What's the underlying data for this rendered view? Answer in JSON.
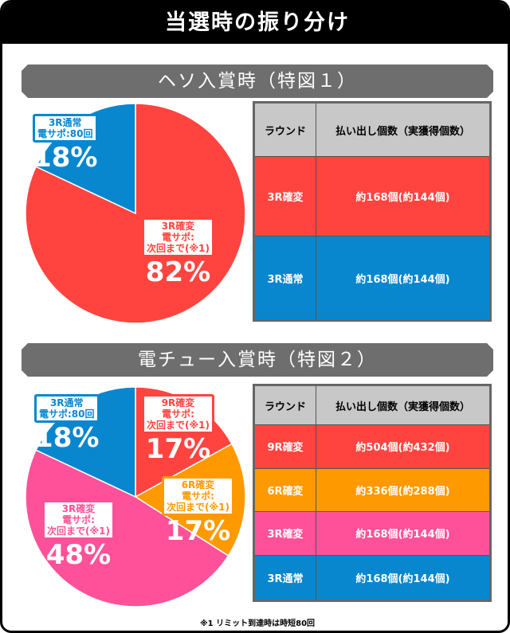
{
  "title": "当選時の振り分け",
  "colors": {
    "red": "#ff4440",
    "blue": "#0887cf",
    "orange": "#ff9900",
    "pink": "#ff5199"
  },
  "sections": [
    {
      "heading": "ヘソ入賞時（特図１）",
      "table": {
        "headers": [
          "ラウンド",
          "払い出し個数（実獲得個数）"
        ],
        "rows": [
          {
            "round": "3R確変",
            "payout": "約168個(約144個)",
            "color": "#ff4440"
          },
          {
            "round": "3R通常",
            "payout": "約168個(約144個)",
            "color": "#0887cf"
          }
        ]
      }
    },
    {
      "heading": "電チュー入賞時（特図２）",
      "table": {
        "headers": [
          "ラウンド",
          "払い出し個数（実獲得個数）"
        ],
        "rows": [
          {
            "round": "9R確変",
            "payout": "約504個(約432個)",
            "color": "#ff4440"
          },
          {
            "round": "6R確変",
            "payout": "約336個(約288個)",
            "color": "#ff9900"
          },
          {
            "round": "3R確変",
            "payout": "約168個(約144個)",
            "color": "#ff5199"
          },
          {
            "round": "3R通常",
            "payout": "約168個(約144個)",
            "color": "#0887cf"
          }
        ]
      }
    }
  ],
  "chart_data": [
    {
      "type": "pie",
      "title": "ヘソ入賞時（特図１）",
      "slices": [
        {
          "label": [
            "3R確変",
            "電サポ:",
            "次回まで(※1)"
          ],
          "value": 82,
          "pct": "82%",
          "color": "#ff4440"
        },
        {
          "label": [
            "3R通常",
            "電サポ:80回"
          ],
          "value": 18,
          "pct": "18%",
          "color": "#0887cf"
        }
      ]
    },
    {
      "type": "pie",
      "title": "電チュー入賞時（特図２）",
      "slices": [
        {
          "label": [
            "9R確変",
            "電サポ:",
            "次回まで(※1)"
          ],
          "value": 17,
          "pct": "17%",
          "color": "#ff4440"
        },
        {
          "label": [
            "6R確変",
            "電サポ:",
            "次回まで(※1)"
          ],
          "value": 17,
          "pct": "17%",
          "color": "#ff9900"
        },
        {
          "label": [
            "3R確変",
            "電サポ:",
            "次回まで(※1)"
          ],
          "value": 48,
          "pct": "48%",
          "color": "#ff5199"
        },
        {
          "label": [
            "3R通常",
            "電サポ:80回"
          ],
          "value": 18,
          "pct": "18%",
          "color": "#0887cf"
        }
      ]
    }
  ],
  "footnote": "※1 リミット到達時は時短80回"
}
